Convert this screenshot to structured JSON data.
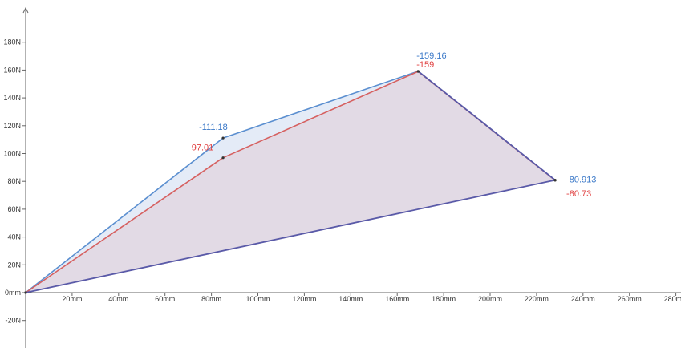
{
  "chart_data": {
    "type": "area",
    "x_unit": "mm",
    "y_unit": "N",
    "xlim": [
      0,
      280
    ],
    "ylim": [
      -30,
      205
    ],
    "x_ticks": [
      20,
      40,
      60,
      80,
      100,
      120,
      140,
      160,
      180,
      200,
      220,
      240,
      260,
      280
    ],
    "y_ticks": [
      -20,
      0,
      20,
      40,
      60,
      80,
      100,
      120,
      140,
      160,
      180
    ],
    "x_tick_labels": [
      "20mm",
      "40mm",
      "60mm",
      "80mm",
      "100mm",
      "120mm",
      "140mm",
      "160mm",
      "180mm",
      "200mm",
      "220mm",
      "240mm",
      "260mm",
      "280mm"
    ],
    "y_tick_labels": [
      "-20N",
      "0mm",
      "20N",
      "40N",
      "60N",
      "80N",
      "100N",
      "120N",
      "140N",
      "160N",
      "180N"
    ],
    "series": [
      {
        "color": "#5b8fd0",
        "fill": "#dfe8f6",
        "label_color": "#3a78c8",
        "points": [
          {
            "x": 0,
            "y": 0,
            "label": ""
          },
          {
            "x": 85,
            "y": 111.18,
            "label": "-111.18"
          },
          {
            "x": 169,
            "y": 159.16,
            "label": "-159.16"
          },
          {
            "x": 228,
            "y": 80.913,
            "label": "-80.913"
          }
        ]
      },
      {
        "color": "#d66060",
        "fill": "#e2d7e2",
        "label_color": "#e04040",
        "points": [
          {
            "x": 0,
            "y": 0,
            "label": ""
          },
          {
            "x": 85,
            "y": 97.01,
            "label": "-97.01"
          },
          {
            "x": 169,
            "y": 159,
            "label": "-159"
          },
          {
            "x": 228,
            "y": 80.73,
            "label": "-80.73"
          }
        ]
      }
    ]
  }
}
